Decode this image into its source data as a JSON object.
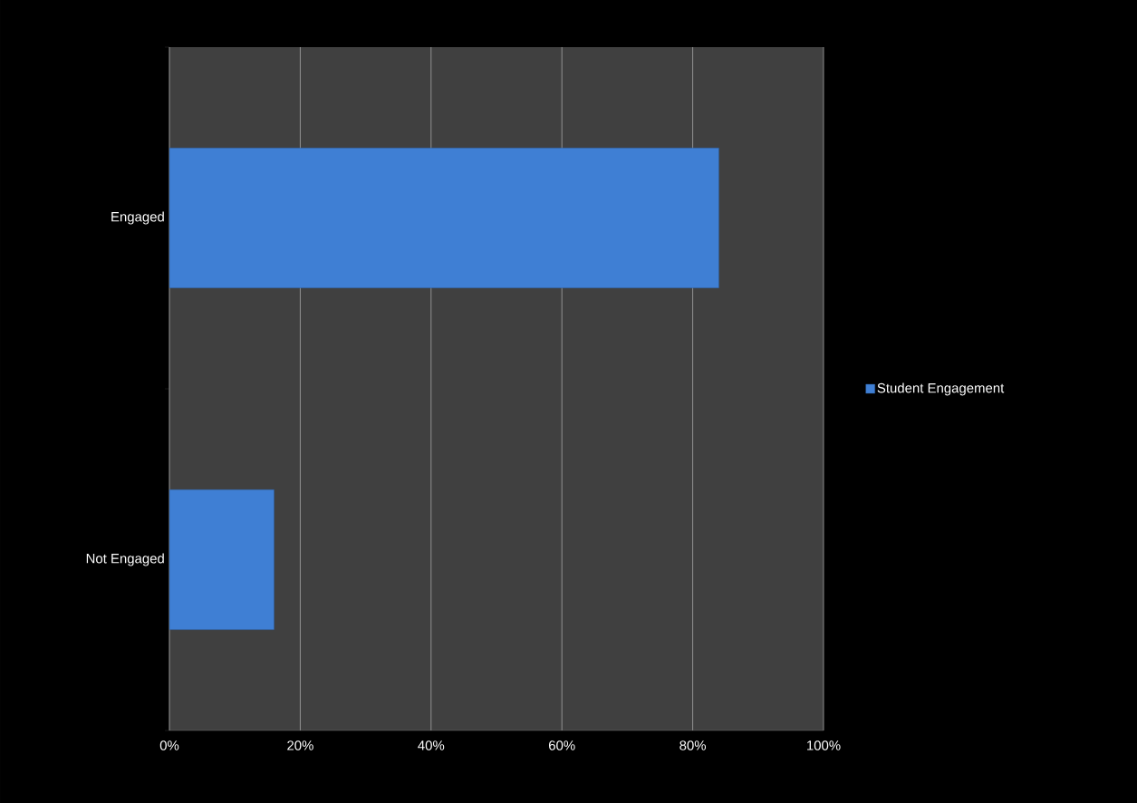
{
  "chart_data": {
    "type": "bar",
    "orientation": "horizontal",
    "categories": [
      "Engaged",
      "Not Engaged"
    ],
    "series": [
      {
        "name": "Student Engagement",
        "color": "#3f7fd4",
        "values": [
          84,
          16
        ]
      }
    ],
    "xlim": [
      0,
      100
    ],
    "xticks": [
      {
        "value": 0,
        "label": "0%"
      },
      {
        "value": 20,
        "label": "20%"
      },
      {
        "value": 40,
        "label": "40%"
      },
      {
        "value": 60,
        "label": "60%"
      },
      {
        "value": 80,
        "label": "80%"
      },
      {
        "value": 100,
        "label": "100%"
      }
    ],
    "grid": "x",
    "legend": "right"
  }
}
